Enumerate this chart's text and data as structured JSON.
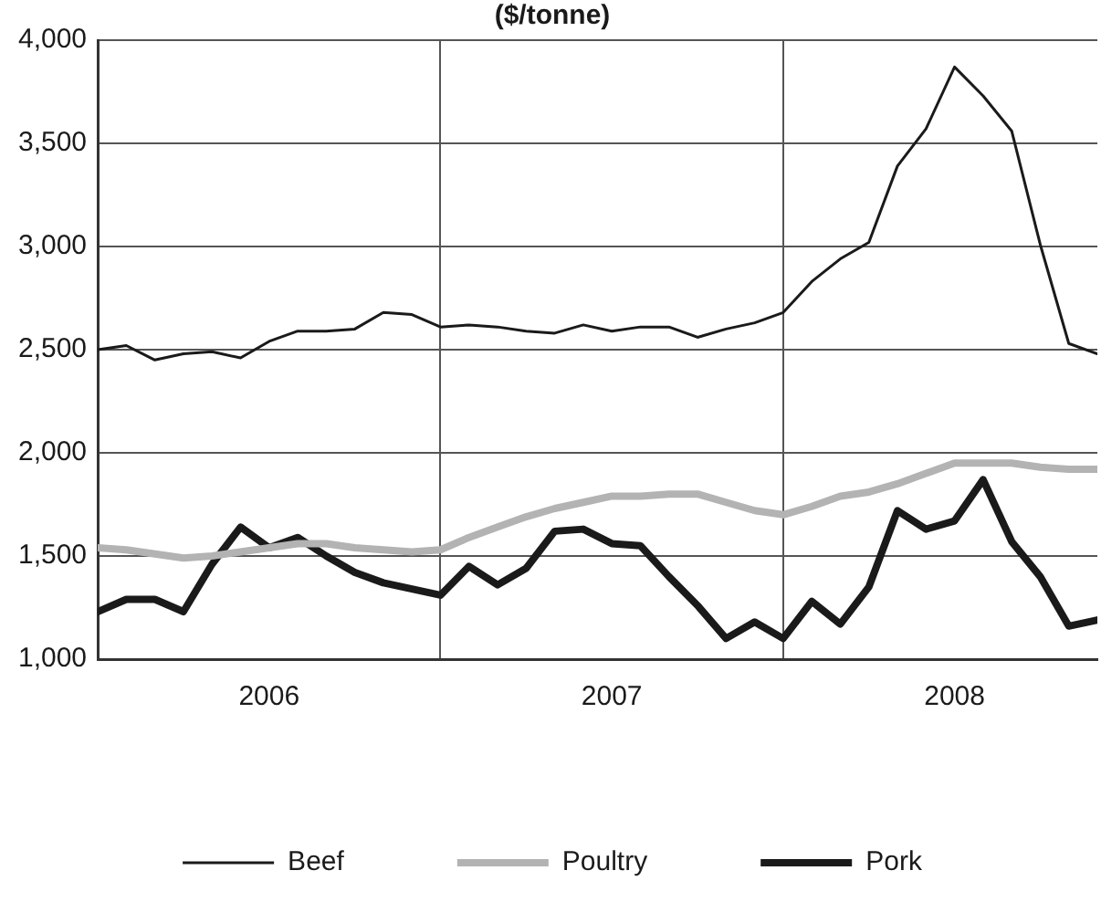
{
  "chart_data": {
    "type": "line",
    "title": "($/tonne)",
    "x": [
      "2006-01",
      "2006-02",
      "2006-03",
      "2006-04",
      "2006-05",
      "2006-06",
      "2006-07",
      "2006-08",
      "2006-09",
      "2006-10",
      "2006-11",
      "2006-12",
      "2007-01",
      "2007-02",
      "2007-03",
      "2007-04",
      "2007-05",
      "2007-06",
      "2007-07",
      "2007-08",
      "2007-09",
      "2007-10",
      "2007-11",
      "2007-12",
      "2008-01",
      "2008-02",
      "2008-03",
      "2008-04",
      "2008-05",
      "2008-06",
      "2008-07",
      "2008-08",
      "2008-09",
      "2008-10",
      "2008-11",
      "2008-12"
    ],
    "series": [
      {
        "name": "Beef",
        "color": "#1a1a1a",
        "values": [
          2500,
          2520,
          2450,
          2480,
          2490,
          2460,
          2540,
          2590,
          2590,
          2600,
          2680,
          2670,
          2610,
          2620,
          2610,
          2590,
          2580,
          2620,
          2590,
          2610,
          2610,
          2560,
          2600,
          2630,
          2680,
          2830,
          2940,
          3020,
          3390,
          3570,
          3870,
          3730,
          3560,
          3010,
          2530,
          2480
        ]
      },
      {
        "name": "Poultry",
        "color": "#b3b3b3",
        "values": [
          1540,
          1530,
          1510,
          1490,
          1500,
          1520,
          1540,
          1560,
          1560,
          1540,
          1530,
          1520,
          1530,
          1590,
          1640,
          1690,
          1730,
          1760,
          1790,
          1790,
          1800,
          1800,
          1760,
          1720,
          1700,
          1740,
          1790,
          1810,
          1850,
          1900,
          1950,
          1950,
          1950,
          1930,
          1920,
          1920
        ]
      },
      {
        "name": "Pork",
        "color": "#1a1a1a",
        "values": [
          1230,
          1290,
          1290,
          1230,
          1460,
          1640,
          1540,
          1590,
          1500,
          1420,
          1370,
          1340,
          1310,
          1450,
          1360,
          1440,
          1620,
          1630,
          1560,
          1550,
          1400,
          1260,
          1100,
          1180,
          1100,
          1280,
          1170,
          1350,
          1720,
          1630,
          1670,
          1870,
          1570,
          1400,
          1160,
          1190
        ]
      }
    ],
    "xlim": [
      "2006-01",
      "2008-12"
    ],
    "xticks": [
      {
        "value": "2006-07",
        "label": "2006"
      },
      {
        "value": "2007-01",
        "label": null
      },
      {
        "value": "2007-07",
        "label": "2007"
      },
      {
        "value": "2008-01",
        "label": null
      },
      {
        "value": "2008-07",
        "label": "2008"
      }
    ],
    "ylim": [
      1000,
      4000
    ],
    "yticks": [
      {
        "value": 1000,
        "label": "1,000"
      },
      {
        "value": 1500,
        "label": "1,500"
      },
      {
        "value": 2000,
        "label": "2,000"
      },
      {
        "value": 2500,
        "label": "2,500"
      },
      {
        "value": 3000,
        "label": "3,000"
      },
      {
        "value": 3500,
        "label": "3,500"
      },
      {
        "value": 4000,
        "label": "4,000"
      }
    ],
    "grid": true,
    "legend": "bottom",
    "marker": "none",
    "line_style": "solid"
  }
}
